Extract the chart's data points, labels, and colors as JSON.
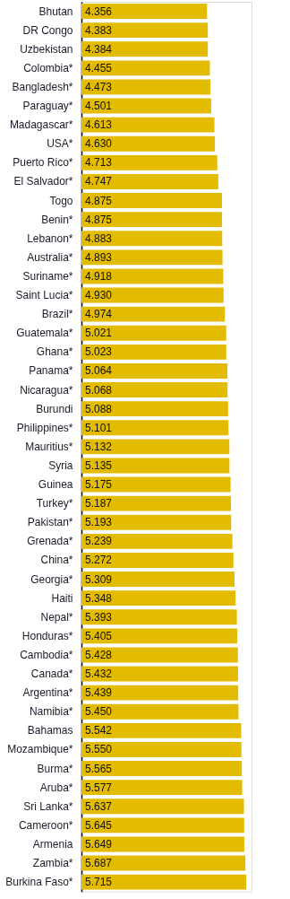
{
  "chart_data": {
    "type": "bar",
    "orientation": "horizontal",
    "color": "#e3bb00",
    "xlim": [
      0,
      5.9
    ],
    "tick_labels": "y",
    "grid": false,
    "categories": [
      "Bhutan",
      "DR Congo",
      "Uzbekistan",
      "Colombia*",
      "Bangladesh*",
      "Paraguay*",
      "Madagascar*",
      "USA*",
      "Puerto Rico*",
      "El Salvador*",
      "Togo",
      "Benin*",
      "Lebanon*",
      "Australia*",
      "Suriname*",
      "Saint Lucia*",
      "Brazil*",
      "Guatemala*",
      "Ghana*",
      "Panama*",
      "Nicaragua*",
      "Burundi",
      "Philippines*",
      "Mauritius*",
      "Syria",
      "Guinea",
      "Turkey*",
      "Pakistan*",
      "Grenada*",
      "China*",
      "Georgia*",
      "Haiti",
      "Nepal*",
      "Honduras*",
      "Cambodia*",
      "Canada*",
      "Argentina*",
      "Namibia*",
      "Bahamas",
      "Mozambique*",
      "Burma*",
      "Aruba*",
      "Sri Lanka*",
      "Cameroon*",
      "Armenia",
      "Zambia*",
      "Burkina Faso*"
    ],
    "values": [
      4.356,
      4.383,
      4.384,
      4.455,
      4.473,
      4.501,
      4.613,
      4.63,
      4.713,
      4.747,
      4.875,
      4.875,
      4.883,
      4.893,
      4.918,
      4.93,
      4.974,
      5.021,
      5.023,
      5.064,
      5.068,
      5.088,
      5.101,
      5.132,
      5.135,
      5.175,
      5.187,
      5.193,
      5.239,
      5.272,
      5.309,
      5.348,
      5.393,
      5.405,
      5.428,
      5.432,
      5.439,
      5.45,
      5.542,
      5.55,
      5.565,
      5.577,
      5.637,
      5.645,
      5.649,
      5.687,
      5.715
    ],
    "value_labels": [
      "4.356",
      "4.383",
      "4.384",
      "4.455",
      "4.473",
      "4.501",
      "4.613",
      "4.630",
      "4.713",
      "4.747",
      "4.875",
      "4.875",
      "4.883",
      "4.893",
      "4.918",
      "4.930",
      "4.974",
      "5.021",
      "5.023",
      "5.064",
      "5.068",
      "5.088",
      "5.101",
      "5.132",
      "5.135",
      "5.175",
      "5.187",
      "5.193",
      "5.239",
      "5.272",
      "5.309",
      "5.348",
      "5.393",
      "5.405",
      "5.428",
      "5.432",
      "5.439",
      "5.450",
      "5.542",
      "5.550",
      "5.565",
      "5.577",
      "5.637",
      "5.645",
      "5.649",
      "5.687",
      "5.715"
    ]
  }
}
